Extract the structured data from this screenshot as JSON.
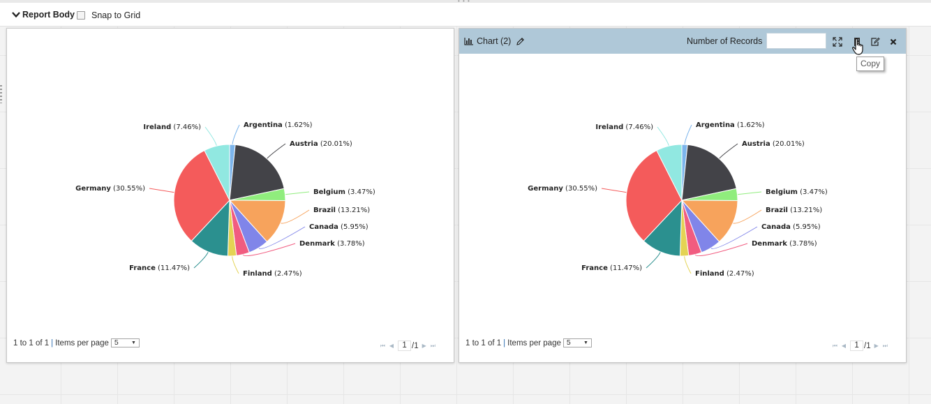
{
  "header": {
    "report_body_label": "Report Body",
    "snap_to_grid_label": "Snap to Grid",
    "snap_to_grid_checked": false
  },
  "panel2_toolbar": {
    "title": "Chart (2)",
    "number_of_records_label": "Number of Records",
    "number_of_records_value": "",
    "tooltip_text": "Copy",
    "icons": [
      "bar-chart-icon",
      "pencil-icon",
      "expand-icon",
      "copy-icon",
      "edit-icon",
      "close-icon"
    ]
  },
  "pager": {
    "range_text": "1 to 1 of 1",
    "separator": "|",
    "items_per_page_label": "Items per page",
    "items_per_page_value": "5",
    "current_page": "1",
    "total_pages": "/1"
  },
  "colors": {
    "panel_bar": "#afc8d8",
    "Argentina": "#7cb5ec",
    "Austria": "#434348",
    "Belgium": "#90ed7d",
    "Brazil": "#f7a35c",
    "Canada": "#8085e9",
    "Denmark": "#f15c80",
    "Finland": "#e4d354",
    "France": "#2b908f",
    "Germany": "#f45b5b",
    "Ireland": "#91e8e1"
  },
  "chart_data": [
    {
      "type": "pie",
      "title": "",
      "categories": [
        "Argentina",
        "Austria",
        "Belgium",
        "Brazil",
        "Canada",
        "Denmark",
        "Finland",
        "France",
        "Germany",
        "Ireland"
      ],
      "values": [
        1.62,
        20.01,
        3.47,
        13.21,
        5.95,
        3.78,
        2.47,
        11.47,
        30.55,
        7.46
      ],
      "labels": [
        "(1.62%)",
        "(20.01%)",
        "(3.47%)",
        "(13.21%)",
        "(5.95%)",
        "(3.78%)",
        "(2.47%)",
        "(11.47%)",
        "(30.55%)",
        "(7.46%)"
      ]
    },
    {
      "type": "pie",
      "title": "Chart (2)",
      "categories": [
        "Argentina",
        "Austria",
        "Belgium",
        "Brazil",
        "Canada",
        "Denmark",
        "Finland",
        "France",
        "Germany",
        "Ireland"
      ],
      "values": [
        1.62,
        20.01,
        3.47,
        13.21,
        5.95,
        3.78,
        2.47,
        11.47,
        30.55,
        7.46
      ],
      "labels": [
        "(1.62%)",
        "(20.01%)",
        "(3.47%)",
        "(13.21%)",
        "(5.95%)",
        "(3.78%)",
        "(2.47%)",
        "(11.47%)",
        "(30.55%)",
        "(7.46%)"
      ]
    }
  ]
}
